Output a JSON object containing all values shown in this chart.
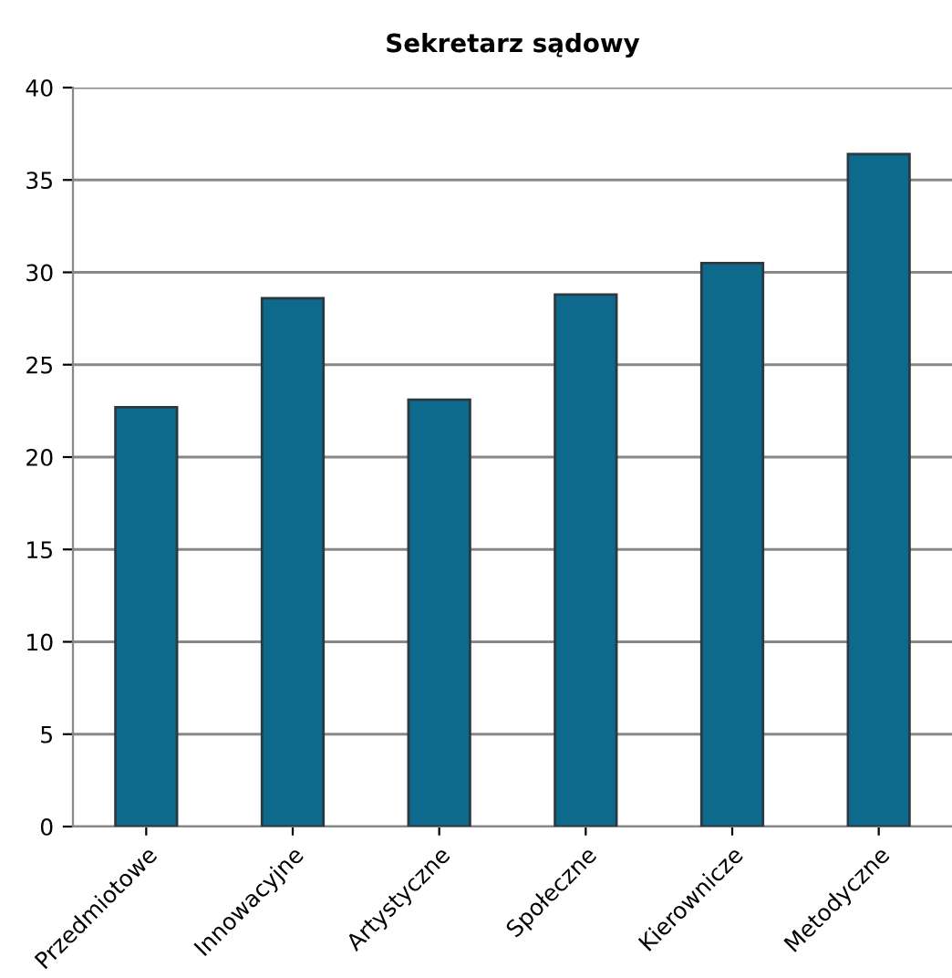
{
  "chart_data": {
    "type": "bar",
    "title": "Sekretarz sądowy",
    "categories": [
      "Przedmiotowe",
      "Innowacyjne",
      "Artystyczne",
      "Społeczne",
      "Kierownicze",
      "Metodyczne"
    ],
    "values": [
      22.7,
      28.6,
      23.1,
      28.8,
      30.5,
      36.4
    ],
    "color": "#0e6a8c",
    "ylim": [
      0,
      40
    ],
    "yticks": [
      0,
      5,
      10,
      15,
      20,
      25,
      30,
      35,
      40
    ],
    "grid": "y",
    "legend": false
  }
}
